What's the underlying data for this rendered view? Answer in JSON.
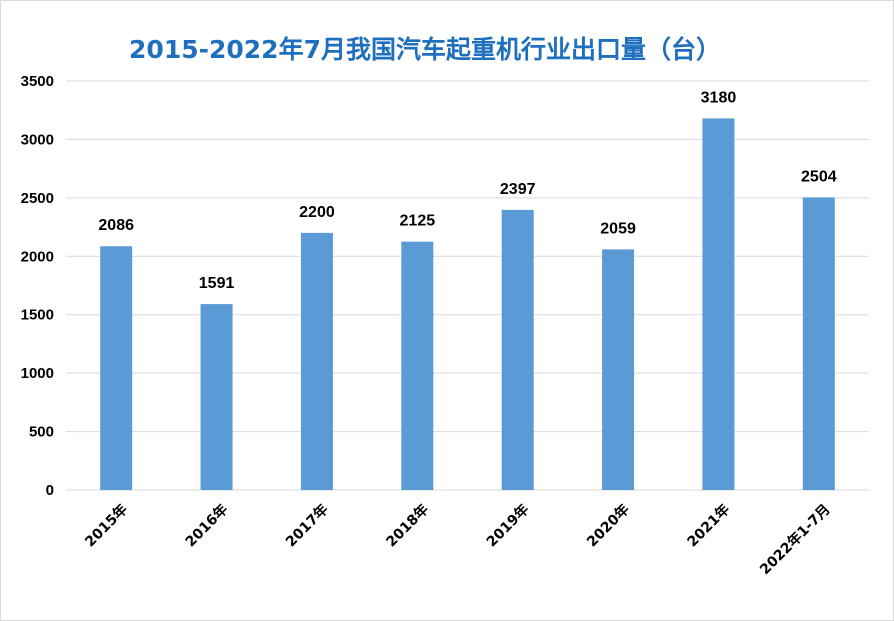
{
  "chart_data": {
    "type": "bar",
    "title": "2015-2022年7月我国汽车起重机行业出口量（台）",
    "categories": [
      "2015年",
      "2016年",
      "2017年",
      "2018年",
      "2019年",
      "2020年",
      "2021年",
      "2022年1-7月"
    ],
    "values": [
      2086,
      1591,
      2200,
      2125,
      2397,
      2059,
      3180,
      2504
    ],
    "ylim": [
      0,
      3500
    ],
    "yticks": [
      0,
      500,
      1000,
      1500,
      2000,
      2500,
      3000,
      3500
    ],
    "xlabel": "",
    "ylabel": "",
    "grid": true,
    "legend": "none",
    "colors": {
      "bar": "#5b9bd5",
      "title": "#1f6fbf"
    }
  }
}
